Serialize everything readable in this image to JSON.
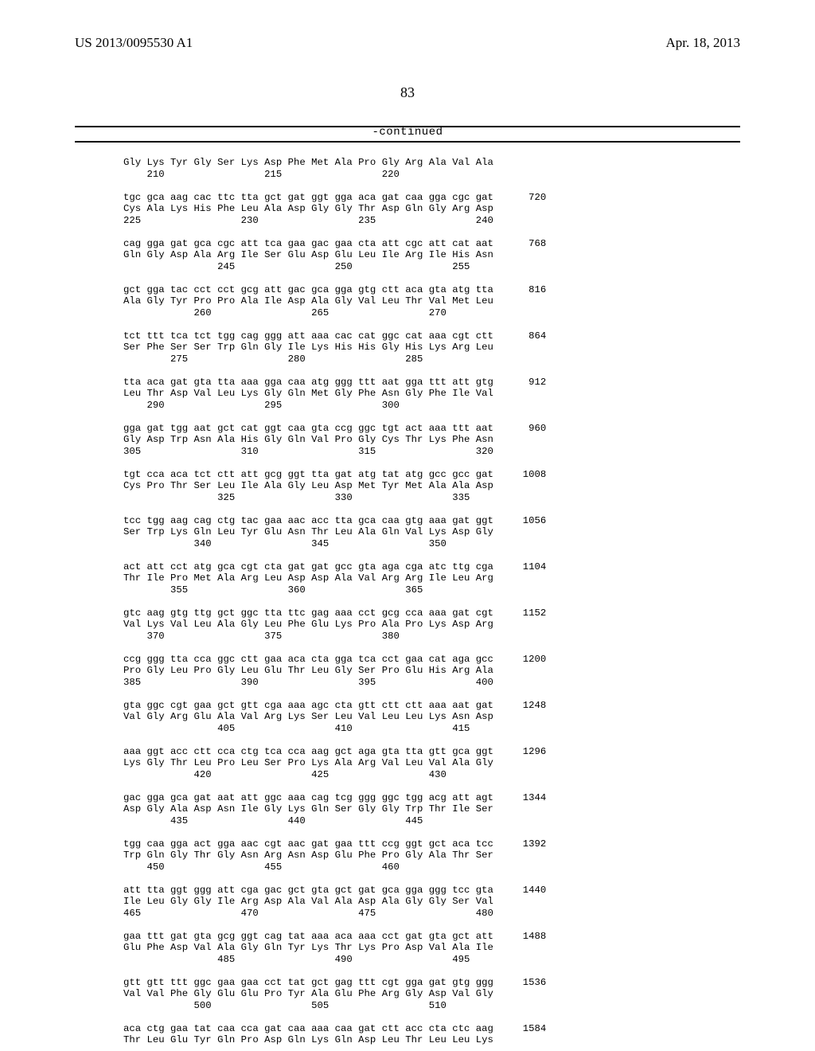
{
  "header": {
    "pub_number": "US 2013/0095530 A1",
    "pub_date": "Apr. 18, 2013",
    "page_number": "83",
    "continued": "-continued"
  },
  "sequence_text": "Gly Lys Tyr Gly Ser Lys Asp Phe Met Ala Pro Gly Arg Ala Val Ala\n    210                 215                 220\n\ntgc gca aag cac ttc tta gct gat ggt gga aca gat caa gga cgc gat      720\nCys Ala Lys His Phe Leu Ala Asp Gly Gly Thr Asp Gln Gly Arg Asp\n225                 230                 235                 240\n\ncag gga gat gca cgc att tca gaa gac gaa cta att cgc att cat aat      768\nGln Gly Asp Ala Arg Ile Ser Glu Asp Glu Leu Ile Arg Ile His Asn\n                245                 250                 255\n\ngct gga tac cct cct gcg att gac gca gga gtg ctt aca gta atg tta      816\nAla Gly Tyr Pro Pro Ala Ile Asp Ala Gly Val Leu Thr Val Met Leu\n            260                 265                 270\n\ntct ttt tca tct tgg cag ggg att aaa cac cat ggc cat aaa cgt ctt      864\nSer Phe Ser Ser Trp Gln Gly Ile Lys His His Gly His Lys Arg Leu\n        275                 280                 285\n\ntta aca gat gta tta aaa gga caa atg ggg ttt aat gga ttt att gtg      912\nLeu Thr Asp Val Leu Lys Gly Gln Met Gly Phe Asn Gly Phe Ile Val\n    290                 295                 300\n\ngga gat tgg aat gct cat ggt caa gta ccg ggc tgt act aaa ttt aat      960\nGly Asp Trp Asn Ala His Gly Gln Val Pro Gly Cys Thr Lys Phe Asn\n305                 310                 315                 320\n\ntgt cca aca tct ctt att gcg ggt tta gat atg tat atg gcc gcc gat     1008\nCys Pro Thr Ser Leu Ile Ala Gly Leu Asp Met Tyr Met Ala Ala Asp\n                325                 330                 335\n\ntcc tgg aag cag ctg tac gaa aac acc tta gca caa gtg aaa gat ggt     1056\nSer Trp Lys Gln Leu Tyr Glu Asn Thr Leu Ala Gln Val Lys Asp Gly\n            340                 345                 350\n\nact att cct atg gca cgt cta gat gat gcc gta aga cga atc ttg cga     1104\nThr Ile Pro Met Ala Arg Leu Asp Asp Ala Val Arg Arg Ile Leu Arg\n        355                 360                 365\n\ngtc aag gtg ttg gct ggc tta ttc gag aaa cct gcg cca aaa gat cgt     1152\nVal Lys Val Leu Ala Gly Leu Phe Glu Lys Pro Ala Pro Lys Asp Arg\n    370                 375                 380\n\nccg ggg tta cca ggc ctt gaa aca cta gga tca cct gaa cat aga gcc     1200\nPro Gly Leu Pro Gly Leu Glu Thr Leu Gly Ser Pro Glu His Arg Ala\n385                 390                 395                 400\n\ngta ggc cgt gaa gct gtt cga aaa agc cta gtt ctt ctt aaa aat gat     1248\nVal Gly Arg Glu Ala Val Arg Lys Ser Leu Val Leu Leu Lys Asn Asp\n                405                 410                 415\n\naaa ggt acc ctt cca ctg tca cca aag gct aga gta tta gtt gca ggt     1296\nLys Gly Thr Leu Pro Leu Ser Pro Lys Ala Arg Val Leu Val Ala Gly\n            420                 425                 430\n\ngac gga gca gat aat att ggc aaa cag tcg ggg ggc tgg acg att agt     1344\nAsp Gly Ala Asp Asn Ile Gly Lys Gln Ser Gly Gly Trp Thr Ile Ser\n        435                 440                 445\n\ntgg caa gga act gga aac cgt aac gat gaa ttt ccg ggt gct aca tcc     1392\nTrp Gln Gly Thr Gly Asn Arg Asn Asp Glu Phe Pro Gly Ala Thr Ser\n    450                 455                 460\n\natt tta ggt ggg att cga gac gct gta gct gat gca gga ggg tcc gta     1440\nIle Leu Gly Gly Ile Arg Asp Ala Val Ala Asp Ala Gly Gly Ser Val\n465                 470                 475                 480\n\ngaa ttt gat gta gcg ggt cag tat aaa aca aaa cct gat gta gct att     1488\nGlu Phe Asp Val Ala Gly Gln Tyr Lys Thr Lys Pro Asp Val Ala Ile\n                485                 490                 495\n\ngtt gtt ttt ggc gaa gaa cct tat gct gag ttt cgt gga gat gtg ggg     1536\nVal Val Phe Gly Glu Glu Pro Tyr Ala Glu Phe Arg Gly Asp Val Gly\n            500                 505                 510\n\naca ctg gaa tat caa cca gat caa aaa caa gat ctt acc cta ctc aag     1584\nThr Leu Glu Tyr Gln Pro Asp Gln Lys Gln Asp Leu Thr Leu Leu Lys"
}
